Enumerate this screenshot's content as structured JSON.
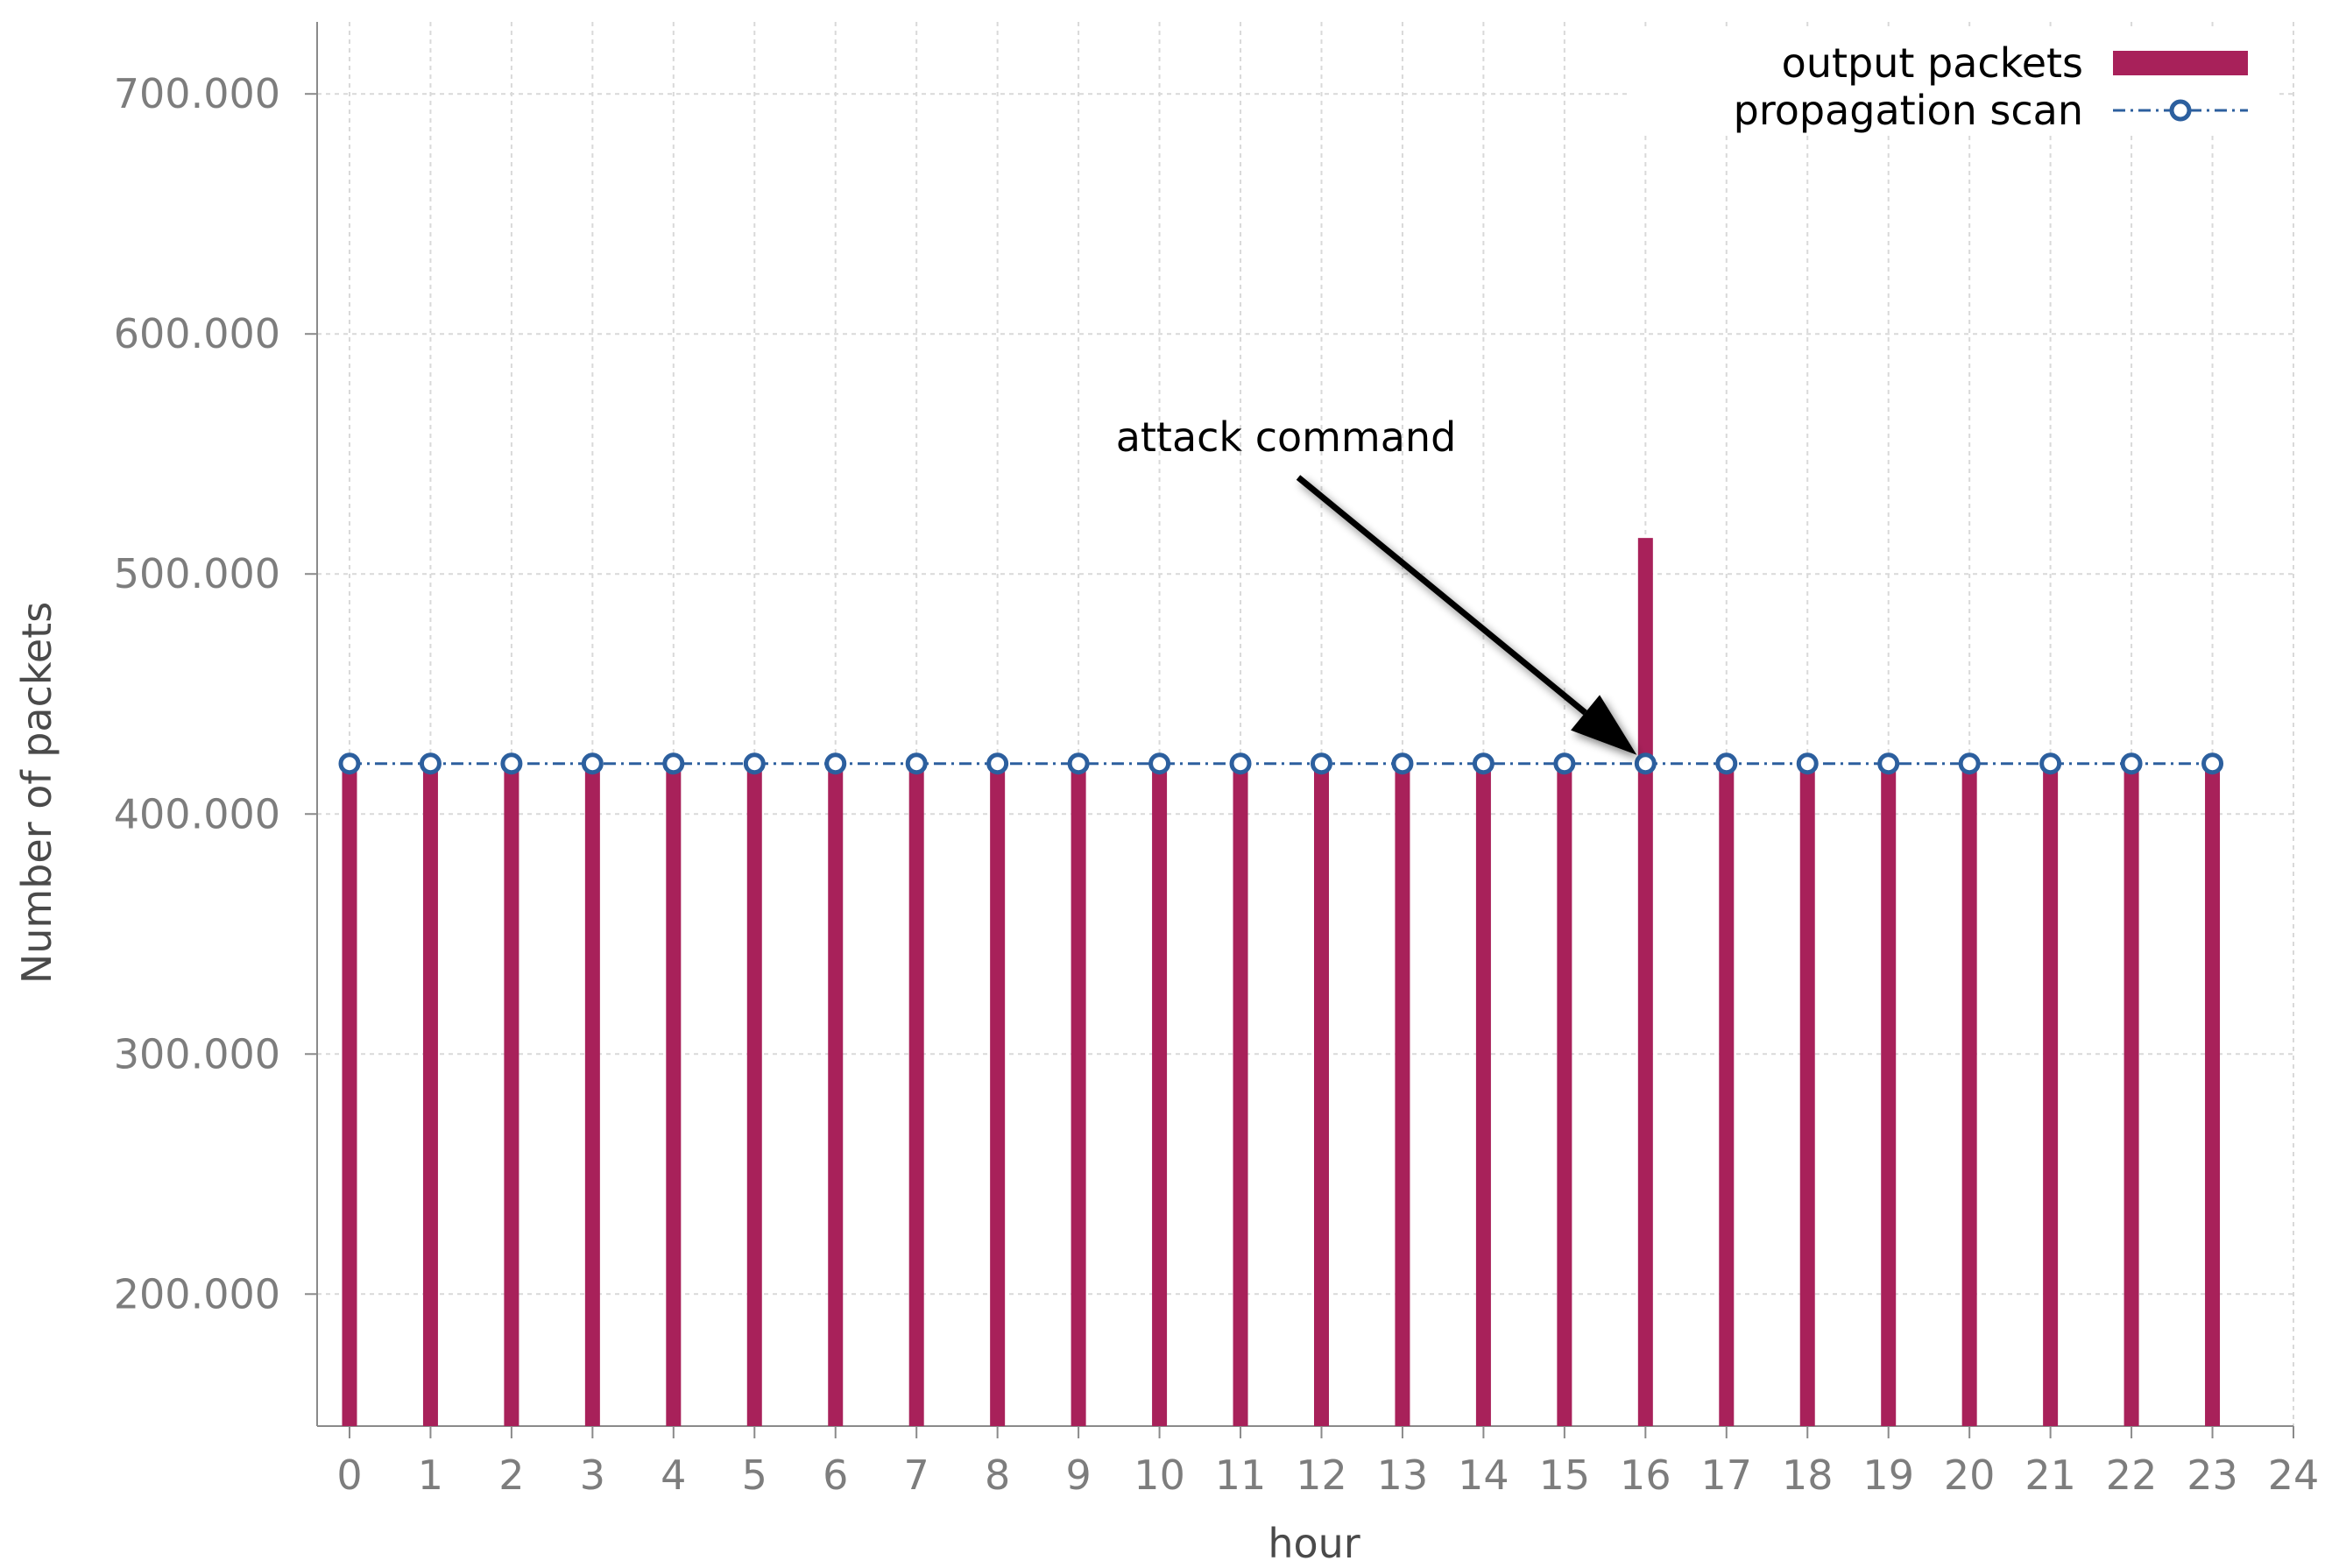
{
  "chart_data": {
    "type": "bar",
    "xlabel": "hour",
    "ylabel": "Number of packets",
    "xlim": [
      -0.4,
      24
    ],
    "ylim": [
      145000,
      730000
    ],
    "xticks": [
      "0",
      "1",
      "2",
      "3",
      "4",
      "5",
      "6",
      "7",
      "8",
      "9",
      "10",
      "11",
      "12",
      "13",
      "14",
      "15",
      "16",
      "17",
      "18",
      "19",
      "20",
      "21",
      "22",
      "23",
      "24"
    ],
    "yticks": [
      {
        "value": 200000,
        "label": "200.000"
      },
      {
        "value": 300000,
        "label": "300.000"
      },
      {
        "value": 400000,
        "label": "400.000"
      },
      {
        "value": 500000,
        "label": "500.000"
      },
      {
        "value": 600000,
        "label": "600.000"
      },
      {
        "value": 700000,
        "label": "700.000"
      }
    ],
    "grid": true,
    "legend_position": "top-right",
    "series": [
      {
        "name": "output packets",
        "type": "bar",
        "color": "#a8215a",
        "x": [
          0,
          1,
          2,
          3,
          4,
          5,
          6,
          7,
          8,
          9,
          10,
          11,
          12,
          13,
          14,
          15,
          16,
          17,
          18,
          19,
          20,
          21,
          22,
          23
        ],
        "values": [
          421000,
          421000,
          421000,
          421000,
          421000,
          421000,
          421000,
          421000,
          421000,
          421000,
          421000,
          421000,
          421000,
          421000,
          421000,
          421000,
          515000,
          421000,
          421000,
          421000,
          421000,
          421000,
          421000,
          421000
        ]
      },
      {
        "name": "propagation scan",
        "type": "line",
        "color": "#2c5f9e",
        "marker": "circle",
        "linestyle": "dash-dot",
        "x": [
          0,
          1,
          2,
          3,
          4,
          5,
          6,
          7,
          8,
          9,
          10,
          11,
          12,
          13,
          14,
          15,
          16,
          17,
          18,
          19,
          20,
          21,
          22,
          23
        ],
        "values": [
          421000,
          421000,
          421000,
          421000,
          421000,
          421000,
          421000,
          421000,
          421000,
          421000,
          421000,
          421000,
          421000,
          421000,
          421000,
          421000,
          421000,
          421000,
          421000,
          421000,
          421000,
          421000,
          421000,
          421000
        ]
      }
    ],
    "annotations": [
      {
        "text": "attack command",
        "target_x": 16,
        "target_y": 421000,
        "arrow": true
      }
    ]
  }
}
